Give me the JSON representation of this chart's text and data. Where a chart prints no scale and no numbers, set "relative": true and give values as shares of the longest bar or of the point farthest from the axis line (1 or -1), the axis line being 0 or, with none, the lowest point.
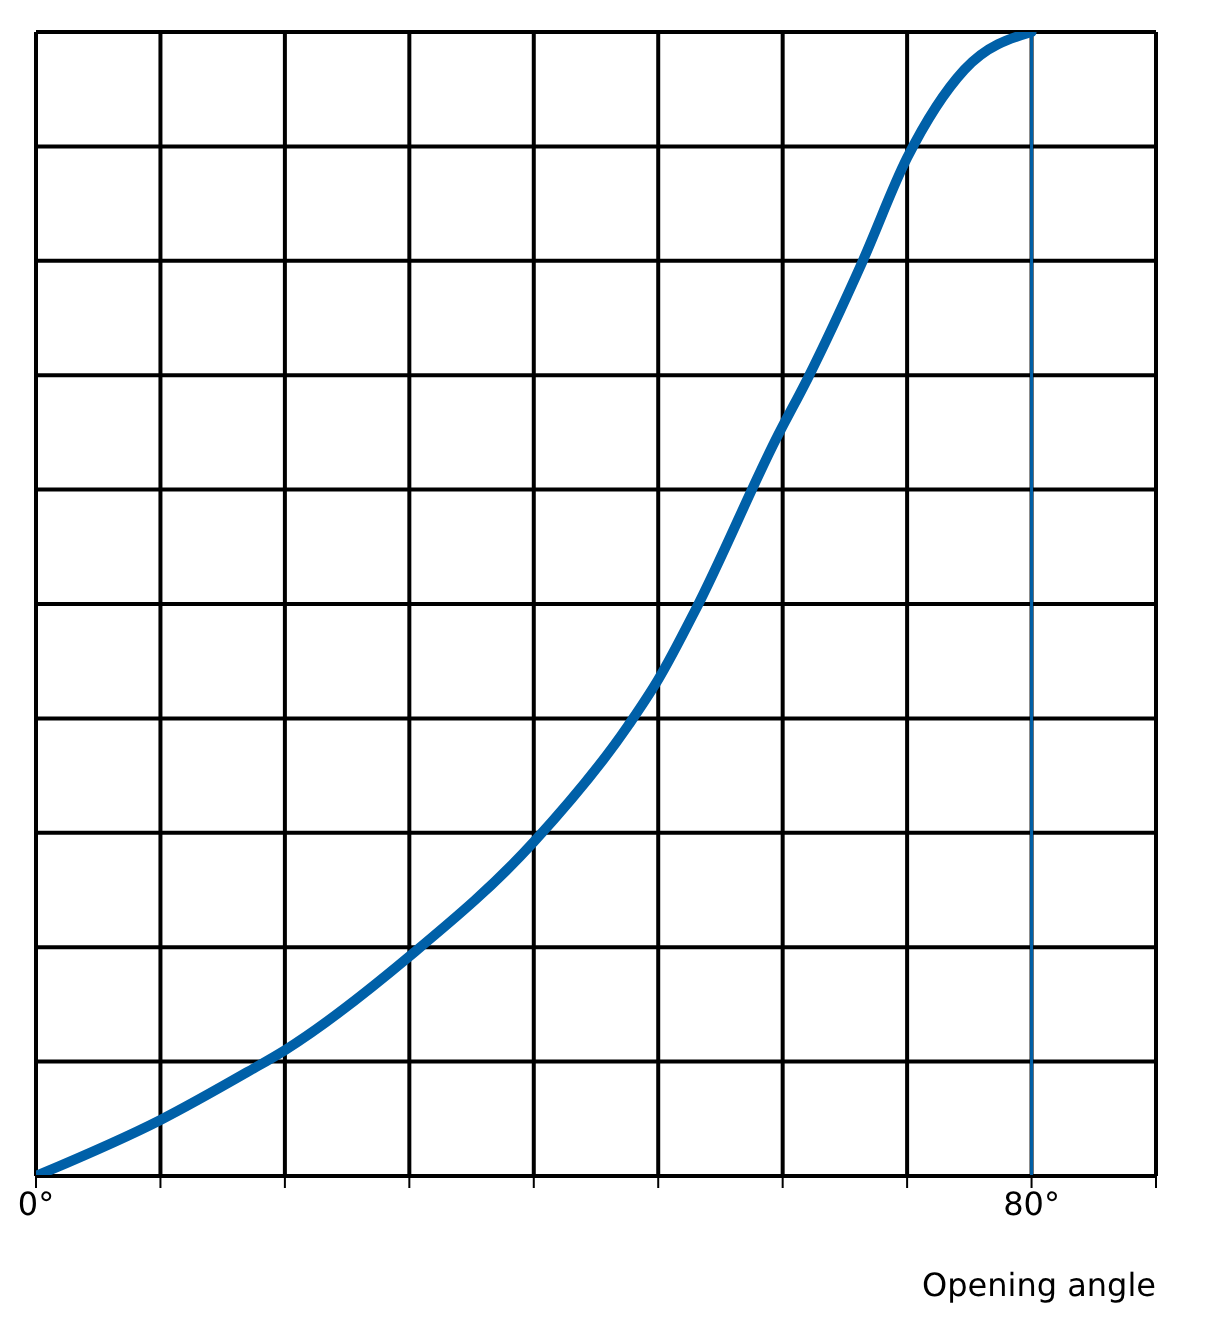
{
  "chart_data": {
    "type": "line",
    "relative": true,
    "xlabel": "Opening angle",
    "xlim": [
      0,
      90
    ],
    "xticks": [
      {
        "value": 0,
        "label": "0°"
      },
      {
        "value": 10,
        "label": null
      },
      {
        "value": 20,
        "label": null
      },
      {
        "value": 30,
        "label": null
      },
      {
        "value": 40,
        "label": null
      },
      {
        "value": 50,
        "label": null
      },
      {
        "value": 60,
        "label": null
      },
      {
        "value": 70,
        "label": null
      },
      {
        "value": 80,
        "label": "80°"
      },
      {
        "value": 90,
        "label": null
      }
    ],
    "grid": true,
    "marker": "none",
    "line_style": "solid",
    "ref_lines": [
      {
        "axis": "x",
        "value": 80,
        "color": "#0060a8"
      }
    ],
    "series": [
      {
        "color": "#0060a8",
        "x": [
          0,
          10,
          17,
          20,
          30,
          40,
          47.6,
          50,
          53,
          59.6,
          62,
          66.4,
          70,
          74.6,
          80
        ],
        "values": [
          0,
          0.049,
          0.091,
          0.11,
          0.192,
          0.292,
          0.394,
          0.434,
          0.495,
          0.647,
          0.697,
          0.799,
          0.89,
          0.967,
          1
        ]
      }
    ]
  }
}
